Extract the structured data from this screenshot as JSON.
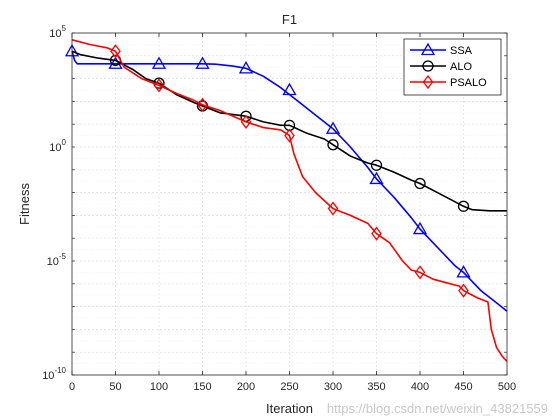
{
  "watermark": "https://blog.csdn.net/weixin_43821559",
  "colors": {
    "SSA": "#0000ff",
    "ALO": "#000000",
    "PSALO": "#ff0000"
  },
  "chart_data": {
    "type": "line",
    "title": "F1",
    "xlabel": "Iteration",
    "ylabel": "Fitness",
    "xlim": [
      0,
      500
    ],
    "ylim_log10": [
      -10,
      5
    ],
    "yscale": "log",
    "grid": true,
    "legend_position": "top-right",
    "x_ticks": [
      0,
      50,
      100,
      150,
      200,
      250,
      300,
      350,
      400,
      450,
      500
    ],
    "y_ticks": [
      {
        "base": "10",
        "exp": "-10",
        "log": -10
      },
      {
        "base": "10",
        "exp": "-5",
        "log": -5
      },
      {
        "base": "10",
        "exp": "0",
        "log": 0
      },
      {
        "base": "10",
        "exp": "5",
        "log": 5
      }
    ],
    "series": [
      {
        "name": "SSA",
        "marker": "triangle",
        "x": [
          0,
          3,
          6,
          50,
          100,
          150,
          165,
          185,
          200,
          220,
          240,
          260,
          280,
          300,
          320,
          340,
          350,
          370,
          390,
          400,
          420,
          440,
          450,
          470,
          490,
          500
        ],
        "y_log10": [
          4.2,
          3.8,
          3.65,
          3.65,
          3.65,
          3.65,
          3.63,
          3.55,
          3.45,
          3.1,
          2.6,
          2.0,
          1.4,
          0.8,
          0.0,
          -0.9,
          -1.4,
          -2.2,
          -3.1,
          -3.6,
          -4.4,
          -5.2,
          -5.5,
          -6.3,
          -6.9,
          -7.2
        ]
      },
      {
        "name": "ALO",
        "marker": "circle",
        "x": [
          0,
          10,
          30,
          50,
          70,
          85,
          100,
          120,
          140,
          150,
          170,
          200,
          220,
          240,
          250,
          270,
          290,
          300,
          320,
          340,
          350,
          370,
          390,
          400,
          420,
          440,
          450,
          460,
          480,
          500
        ],
        "y_log10": [
          4.2,
          4.05,
          3.9,
          3.8,
          3.4,
          3.0,
          2.8,
          2.3,
          1.95,
          1.8,
          1.5,
          1.35,
          1.1,
          0.95,
          0.95,
          0.6,
          0.35,
          0.1,
          -0.4,
          -0.7,
          -0.8,
          -1.1,
          -1.45,
          -1.6,
          -2.0,
          -2.4,
          -2.6,
          -2.75,
          -2.8,
          -2.8
        ]
      },
      {
        "name": "PSALO",
        "marker": "diamond",
        "x": [
          0,
          20,
          40,
          50,
          60,
          80,
          100,
          120,
          140,
          150,
          170,
          200,
          220,
          240,
          250,
          255,
          265,
          280,
          300,
          320,
          340,
          350,
          365,
          380,
          390,
          400,
          415,
          430,
          445,
          450,
          465,
          478,
          482,
          488,
          495,
          500
        ],
        "y_log10": [
          4.7,
          4.5,
          4.35,
          4.2,
          3.5,
          3.0,
          2.7,
          2.35,
          2.05,
          1.85,
          1.6,
          1.1,
          0.85,
          0.75,
          0.5,
          -0.3,
          -1.3,
          -2.0,
          -2.7,
          -3.0,
          -3.35,
          -3.8,
          -4.2,
          -5.0,
          -5.4,
          -5.5,
          -5.8,
          -5.95,
          -6.1,
          -6.3,
          -6.6,
          -6.8,
          -8.0,
          -8.8,
          -9.2,
          -9.4
        ]
      }
    ],
    "markers": {
      "SSA": {
        "x": [
          0,
          50,
          100,
          150,
          200,
          250,
          300,
          350,
          400,
          450
        ],
        "y_log10": [
          4.2,
          3.65,
          3.65,
          3.65,
          3.45,
          2.5,
          0.8,
          -1.4,
          -3.6,
          -5.5
        ]
      },
      "ALO": {
        "x": [
          50,
          100,
          150,
          200,
          250,
          300,
          350,
          400,
          450
        ],
        "y_log10": [
          3.8,
          2.8,
          1.8,
          1.35,
          0.95,
          0.1,
          -0.8,
          -1.6,
          -2.6
        ]
      },
      "PSALO": {
        "x": [
          50,
          100,
          150,
          200,
          250,
          300,
          350,
          400,
          450
        ],
        "y_log10": [
          4.2,
          2.7,
          1.85,
          1.1,
          0.5,
          -2.7,
          -3.8,
          -5.5,
          -6.3
        ]
      }
    }
  }
}
